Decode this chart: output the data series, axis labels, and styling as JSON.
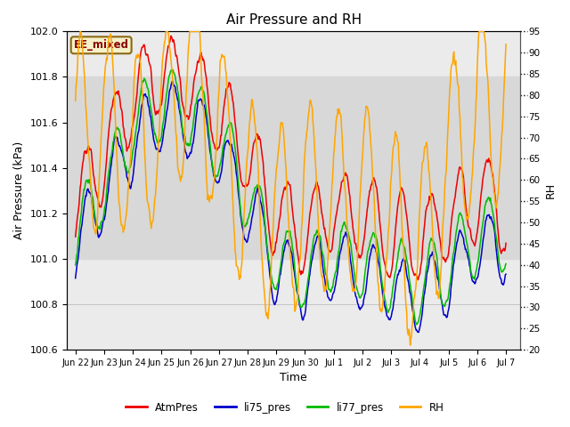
{
  "title": "Air Pressure and RH",
  "xlabel": "Time",
  "ylabel_left": "Air Pressure (kPa)",
  "ylabel_right": "RH",
  "ylim_left": [
    100.6,
    102.0
  ],
  "ylim_right": [
    20,
    95
  ],
  "yticks_left": [
    100.6,
    100.8,
    101.0,
    101.2,
    101.4,
    101.6,
    101.8,
    102.0
  ],
  "yticks_right": [
    20,
    25,
    30,
    35,
    40,
    45,
    50,
    55,
    60,
    65,
    70,
    75,
    80,
    85,
    90,
    95
  ],
  "shade_band": [
    101.0,
    101.8
  ],
  "shade_color": "#d8d8d8",
  "plot_bg_color": "#ebebeb",
  "fig_bg_color": "#ffffff",
  "label_box_text": "EE_mixed",
  "label_box_color": "#f5f0c8",
  "label_box_edge": "#8b6914",
  "label_box_text_color": "#8b0000",
  "colors": {
    "AtmPres": "#ee0000",
    "li75_pres": "#0000cc",
    "li77_pres": "#00bb00",
    "RH": "#ffa500"
  },
  "line_width": 1.1,
  "tick_labels": [
    "Jun 22",
    "Jun 23",
    "Jun 24",
    "Jun 25",
    "Jun 26",
    "Jun 27",
    "Jun 28",
    "Jun 29",
    "Jun 30",
    "Jul 1",
    "Jul 2",
    "Jul 3",
    "Jul 4",
    "Jul 5",
    "Jul 6",
    "Jul 7"
  ],
  "tick_positions": [
    0,
    1,
    2,
    3,
    4,
    5,
    6,
    7,
    8,
    9,
    10,
    11,
    12,
    13,
    14,
    15
  ],
  "grid_color": "#bbbbbb",
  "grid_alpha": 0.8,
  "figsize": [
    6.4,
    4.8
  ],
  "dpi": 100
}
